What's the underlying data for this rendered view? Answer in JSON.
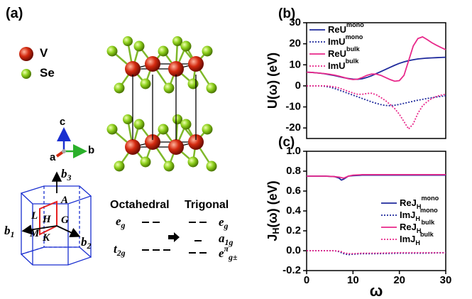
{
  "panel_a": {
    "label": "(a)",
    "legend": [
      {
        "label": "V",
        "color": "#d42a10"
      },
      {
        "label": "Se",
        "color": "#8fd11e"
      }
    ],
    "axes": {
      "a": "a",
      "b": "b",
      "c": "c"
    },
    "bz": {
      "vectors": [
        "b_{3}",
        "b_{1}",
        "b_{2}"
      ],
      "points": [
        "A",
        "L",
        "H",
        "G",
        "M",
        "K"
      ]
    },
    "levels": {
      "left_title": "Octahedral",
      "right_title": "Trigonal",
      "left": [
        "e_{g}",
        "t_{2g}"
      ],
      "right": [
        "e_{g}",
        "a_{1g}",
        "e^{π}_{g±}"
      ]
    }
  },
  "chart_data": [
    {
      "type": "line",
      "panel_label": "(b)",
      "ylabel": "U(ω) (eV)",
      "xlim": [
        0,
        30
      ],
      "ylim": [
        -25,
        30
      ],
      "yticks": [
        -20,
        -10,
        0,
        10,
        20,
        30
      ],
      "legend": "upper left",
      "x": [
        0,
        1,
        2,
        3,
        4,
        5,
        6,
        7,
        8,
        9,
        10,
        11,
        12,
        13,
        14,
        15,
        16,
        17,
        18,
        19,
        20,
        21,
        22,
        23,
        24,
        25,
        26,
        27,
        28,
        29,
        30
      ],
      "series": [
        {
          "name": "ReU^{mono}",
          "color": "#1f2a9c",
          "linestyle": "solid",
          "values": [
            6.5,
            6.4,
            6.2,
            6.0,
            5.7,
            5.3,
            4.9,
            4.4,
            3.9,
            3.5,
            3.2,
            3.1,
            3.4,
            4.0,
            4.8,
            5.8,
            6.8,
            7.8,
            8.8,
            9.8,
            10.7,
            11.4,
            12.0,
            12.4,
            12.8,
            13.0,
            13.2,
            13.3,
            13.4,
            13.5,
            13.6
          ]
        },
        {
          "name": "ImU^{mono}",
          "color": "#1f2a9c",
          "linestyle": "dotted",
          "values": [
            0,
            0,
            0,
            0,
            -0.2,
            -0.6,
            -1.2,
            -2,
            -2.8,
            -3.6,
            -4.4,
            -5.2,
            -6.0,
            -6.8,
            -7.6,
            -8.3,
            -8.9,
            -9.3,
            -9.4,
            -9.2,
            -8.8,
            -8.3,
            -7.8,
            -7.3,
            -6.8,
            -6.4,
            -6.0,
            -5.6,
            -5.3,
            -5.0,
            -4.7
          ]
        },
        {
          "name": "ReU^{bulk}",
          "color": "#e8288a",
          "linestyle": "solid",
          "values": [
            6.5,
            6.4,
            6.2,
            6.0,
            5.8,
            5.5,
            5.1,
            4.6,
            4.0,
            3.4,
            3.0,
            3.2,
            4.0,
            5.0,
            5.6,
            5.6,
            5.0,
            4.0,
            3.0,
            2.2,
            2.5,
            5.0,
            12.0,
            19.0,
            22.5,
            23.3,
            22.0,
            20.5,
            19.3,
            18.2,
            17.2
          ]
        },
        {
          "name": "ImU^{bulk}",
          "color": "#e8288a",
          "linestyle": "dotted",
          "values": [
            0,
            0,
            0,
            0,
            0,
            -0.2,
            -0.5,
            -1.0,
            -1.8,
            -2.6,
            -3.4,
            -4.0,
            -4.0,
            -3.6,
            -3.5,
            -4.2,
            -5.5,
            -7.0,
            -8.8,
            -10.8,
            -13.5,
            -17.0,
            -20.5,
            -18.0,
            -13.0,
            -9.5,
            -7.5,
            -6.0,
            -5.0,
            -4.4,
            -4.0
          ]
        }
      ]
    },
    {
      "type": "line",
      "panel_label": "(c)",
      "xlabel": "ω",
      "ylabel": "J_{H}(ω) (eV)",
      "xlim": [
        0,
        30
      ],
      "ylim": [
        -0.2,
        1.0
      ],
      "xticks": [
        0,
        10,
        20,
        30
      ],
      "yticks": [
        -0.2,
        {
          "value": 0,
          "label": "0.0"
        },
        0.2,
        0.4,
        0.6,
        0.8,
        {
          "value": 1,
          "label": "1.0"
        }
      ],
      "legend": "right",
      "x": [
        0,
        2,
        4,
        6,
        7,
        7.5,
        8,
        9,
        10,
        12,
        15,
        20,
        25,
        30
      ],
      "series": [
        {
          "name": "ReJ_{H}^{mono}",
          "color": "#1f2a9c",
          "linestyle": "solid",
          "values": [
            0.75,
            0.75,
            0.75,
            0.745,
            0.73,
            0.71,
            0.72,
            0.75,
            0.755,
            0.76,
            0.76,
            0.76,
            0.76,
            0.76
          ]
        },
        {
          "name": "ImJ_{H}^{mono}",
          "color": "#1f2a9c",
          "linestyle": "dotted",
          "values": [
            0,
            0,
            0,
            0,
            -0.01,
            -0.02,
            -0.03,
            -0.04,
            -0.035,
            -0.03,
            -0.03,
            -0.025,
            -0.025,
            -0.02
          ]
        },
        {
          "name": "ReJ_{H}^{bulk}",
          "color": "#e8288a",
          "linestyle": "solid",
          "values": [
            0.75,
            0.75,
            0.75,
            0.745,
            0.74,
            0.735,
            0.73,
            0.75,
            0.76,
            0.765,
            0.765,
            0.765,
            0.765,
            0.765
          ]
        },
        {
          "name": "ImJ_{H}^{bulk}",
          "color": "#e8288a",
          "linestyle": "dotted",
          "values": [
            0,
            0,
            0,
            0,
            -0.005,
            -0.01,
            -0.02,
            -0.03,
            -0.03,
            -0.025,
            -0.025,
            -0.02,
            -0.02,
            -0.02
          ]
        }
      ]
    }
  ]
}
